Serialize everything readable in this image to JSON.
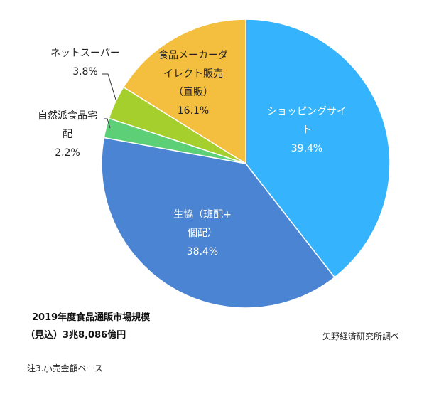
{
  "chart_data": {
    "type": "pie",
    "start": "top",
    "direction": "clockwise",
    "slices": [
      {
        "label": "ショッピングサイト",
        "value": 39.4,
        "pct": "39.4%",
        "color": "#35b3fc"
      },
      {
        "label": "生協（班配+個配）",
        "value": 38.4,
        "pct": "38.4%",
        "color": "#4a84d2"
      },
      {
        "label": "自然派食品宅配",
        "value": 2.2,
        "pct": "2.2%",
        "color": "#5ccf77"
      },
      {
        "label": "ネットスーパー",
        "value": 3.8,
        "pct": "3.8%",
        "color": "#a4cf2c"
      },
      {
        "label": "食品メーカーダイレクト販売（直販）",
        "value": 16.1,
        "pct": "16.1%",
        "color": "#f4be3f"
      }
    ],
    "label_lines": {
      "shopping": [
        "ショッピングサイ",
        "ト"
      ],
      "coop": [
        "生協（班配+",
        "個配）"
      ],
      "shizen": [
        "自然派食品宅",
        "配"
      ],
      "net": [
        "ネットスーパー"
      ],
      "maker": [
        "食品メーカーダ",
        "イレクト販売",
        "（直販）"
      ]
    },
    "annotations": {
      "total_line1": "2019年度食品通販市場規模",
      "total_line2": "（見込）3兆8,086億円",
      "source": "矢野経済研究所調べ",
      "note": "注3.小売金額ベース"
    }
  }
}
